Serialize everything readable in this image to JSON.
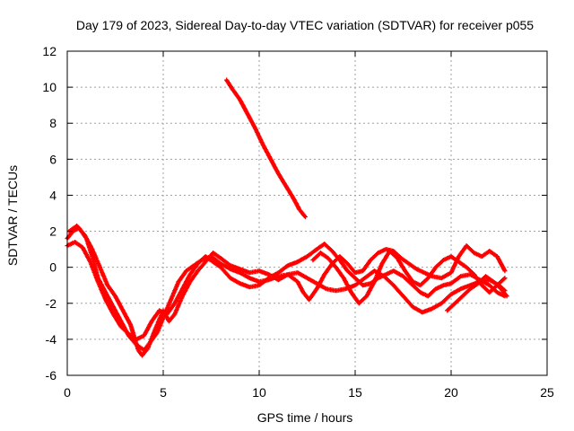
{
  "chart_data": {
    "type": "scatter",
    "title": "Day 179 of 2023, Sidereal Day-to-day VTEC variation (SDTVAR) for receiver p055",
    "xlabel": "GPS time / hours",
    "ylabel": "SDTVAR / TECUs",
    "xlim": [
      0,
      25
    ],
    "ylim": [
      -6,
      12
    ],
    "x_ticks": [
      0,
      5,
      10,
      15,
      20,
      25
    ],
    "y_ticks": [
      -6,
      -4,
      -2,
      0,
      2,
      4,
      6,
      8,
      10,
      12
    ],
    "x_tick_labels": [
      "0",
      "5",
      "10",
      "15",
      "20",
      "25"
    ],
    "y_tick_labels": [
      "-6",
      "-4",
      "-2",
      "0",
      "2",
      "4",
      "6",
      "8",
      "10",
      "12"
    ],
    "grid": true,
    "marker": "+",
    "series": [
      {
        "name": "track-1",
        "color": "#ff0000",
        "points": [
          [
            0.0,
            1.6
          ],
          [
            0.3,
            2.0
          ],
          [
            0.6,
            2.2
          ],
          [
            1.0,
            1.6
          ],
          [
            1.3,
            0.6
          ],
          [
            1.6,
            -0.6
          ],
          [
            2.0,
            -1.4
          ],
          [
            2.4,
            -2.2
          ],
          [
            2.8,
            -3.0
          ],
          [
            3.2,
            -3.8
          ],
          [
            3.6,
            -4.3
          ],
          [
            4.0,
            -4.6
          ],
          [
            4.3,
            -4.2
          ],
          [
            4.7,
            -3.6
          ],
          [
            5.0,
            -2.8
          ],
          [
            5.4,
            -1.8
          ],
          [
            5.8,
            -0.8
          ],
          [
            6.2,
            -0.2
          ],
          [
            6.6,
            0.1
          ],
          [
            7.0,
            0.4
          ],
          [
            7.5,
            0.6
          ],
          [
            8.0,
            0.2
          ],
          [
            8.5,
            -0.1
          ],
          [
            9.0,
            -0.3
          ],
          [
            9.5,
            -0.6
          ],
          [
            10.0,
            -0.8
          ],
          [
            10.5,
            -0.7
          ],
          [
            11.0,
            -0.5
          ],
          [
            11.5,
            -0.4
          ],
          [
            12.0,
            -0.3
          ],
          [
            12.5,
            -0.6
          ],
          [
            13.0,
            -0.9
          ],
          [
            13.5,
            -1.2
          ],
          [
            14.0,
            -1.3
          ],
          [
            14.5,
            -1.2
          ],
          [
            15.0,
            -1.0
          ],
          [
            15.5,
            -0.6
          ],
          [
            16.0,
            -0.2
          ],
          [
            16.5,
            -0.5
          ],
          [
            17.0,
            -1.0
          ],
          [
            17.5,
            -1.6
          ],
          [
            18.0,
            -2.2
          ],
          [
            18.5,
            -2.5
          ],
          [
            19.0,
            -2.3
          ],
          [
            19.5,
            -2.0
          ],
          [
            20.0,
            -1.5
          ],
          [
            20.5,
            -1.2
          ],
          [
            21.0,
            -1.0
          ],
          [
            21.5,
            -0.8
          ],
          [
            22.0,
            -0.7
          ],
          [
            22.5,
            -1.0
          ],
          [
            22.8,
            -1.3
          ]
        ]
      },
      {
        "name": "track-2",
        "color": "#ff0000",
        "points": [
          [
            0.0,
            1.2
          ],
          [
            0.4,
            1.4
          ],
          [
            0.8,
            1.1
          ],
          [
            1.2,
            0.3
          ],
          [
            1.6,
            -0.8
          ],
          [
            2.0,
            -1.8
          ],
          [
            2.4,
            -2.6
          ],
          [
            2.8,
            -3.3
          ],
          [
            3.2,
            -3.7
          ],
          [
            3.6,
            -4.0
          ],
          [
            4.0,
            -3.8
          ],
          [
            4.4,
            -3.0
          ],
          [
            4.8,
            -2.4
          ],
          [
            5.2,
            -2.6
          ],
          [
            5.6,
            -2.0
          ],
          [
            6.0,
            -1.2
          ],
          [
            6.4,
            -0.4
          ],
          [
            6.8,
            0.2
          ],
          [
            7.2,
            0.6
          ],
          [
            7.6,
            0.3
          ],
          [
            8.0,
            0.0
          ],
          [
            8.5,
            -0.6
          ],
          [
            9.0,
            -0.9
          ],
          [
            9.5,
            -1.1
          ],
          [
            10.0,
            -1.0
          ],
          [
            10.5,
            -0.6
          ],
          [
            11.0,
            -0.3
          ],
          [
            11.5,
            0.1
          ],
          [
            12.0,
            0.3
          ],
          [
            12.5,
            0.6
          ],
          [
            13.0,
            1.0
          ],
          [
            13.4,
            1.3
          ],
          [
            13.8,
            0.9
          ],
          [
            14.2,
            0.4
          ],
          [
            14.6,
            -0.2
          ],
          [
            15.0,
            -0.6
          ],
          [
            15.4,
            -1.0
          ],
          [
            15.8,
            -0.9
          ],
          [
            16.2,
            -0.6
          ],
          [
            16.6,
            -0.4
          ],
          [
            17.0,
            -0.2
          ],
          [
            17.5,
            -0.5
          ],
          [
            18.0,
            -1.0
          ],
          [
            18.4,
            -1.4
          ],
          [
            18.8,
            -1.6
          ],
          [
            19.2,
            -1.2
          ],
          [
            19.6,
            -1.0
          ],
          [
            20.0,
            -0.9
          ],
          [
            20.5,
            -0.5
          ],
          [
            21.0,
            -0.4
          ],
          [
            21.5,
            -0.7
          ],
          [
            22.0,
            -1.0
          ],
          [
            22.4,
            -1.4
          ],
          [
            22.8,
            -1.6
          ]
        ]
      },
      {
        "name": "track-3",
        "color": "#ff0000",
        "points": [
          [
            0.1,
            2.0
          ],
          [
            0.5,
            2.3
          ],
          [
            0.9,
            1.8
          ],
          [
            1.3,
            1.0
          ],
          [
            1.7,
            0.0
          ],
          [
            2.1,
            -1.0
          ],
          [
            2.5,
            -1.6
          ],
          [
            2.9,
            -2.4
          ],
          [
            3.3,
            -3.2
          ],
          [
            3.7,
            -4.6
          ],
          [
            3.9,
            -4.9
          ],
          [
            4.2,
            -4.5
          ],
          [
            4.6,
            -3.4
          ],
          [
            5.0,
            -2.4
          ],
          [
            5.3,
            -3.0
          ],
          [
            5.6,
            -2.6
          ],
          [
            6.0,
            -1.6
          ],
          [
            6.4,
            -0.8
          ],
          [
            6.8,
            -0.2
          ],
          [
            7.2,
            0.3
          ],
          [
            7.6,
            0.8
          ],
          [
            8.0,
            0.5
          ],
          [
            8.5,
            0.1
          ],
          [
            9.0,
            -0.1
          ],
          [
            9.5,
            -0.3
          ],
          [
            10.0,
            -0.2
          ],
          [
            10.5,
            -0.4
          ],
          [
            11.0,
            -0.7
          ],
          [
            11.5,
            -0.4
          ],
          [
            12.0,
            -0.8
          ],
          [
            12.3,
            -1.4
          ],
          [
            12.6,
            -1.8
          ],
          [
            13.0,
            -1.2
          ],
          [
            13.4,
            -0.4
          ],
          [
            13.8,
            0.2
          ],
          [
            14.2,
            0.6
          ],
          [
            14.6,
            0.2
          ],
          [
            15.0,
            -0.3
          ],
          [
            15.4,
            -0.2
          ],
          [
            15.8,
            0.4
          ],
          [
            16.2,
            0.8
          ],
          [
            16.6,
            1.0
          ],
          [
            17.0,
            0.9
          ],
          [
            17.4,
            0.5
          ],
          [
            17.8,
            0.2
          ],
          [
            18.2,
            -0.1
          ],
          [
            18.6,
            -0.3
          ],
          [
            19.0,
            -0.5
          ],
          [
            19.5,
            -0.6
          ],
          [
            20.0,
            -0.3
          ],
          [
            20.4,
            0.6
          ],
          [
            20.8,
            1.2
          ],
          [
            21.2,
            0.8
          ],
          [
            21.6,
            0.6
          ],
          [
            22.0,
            0.9
          ],
          [
            22.4,
            0.6
          ],
          [
            22.8,
            -0.2
          ]
        ]
      },
      {
        "name": "track-4",
        "color": "#ff0000",
        "points": [
          [
            8.3,
            10.4
          ],
          [
            8.6,
            9.9
          ],
          [
            9.0,
            9.3
          ],
          [
            9.4,
            8.5
          ],
          [
            9.8,
            7.7
          ],
          [
            10.2,
            6.8
          ],
          [
            10.6,
            6.0
          ],
          [
            11.0,
            5.2
          ],
          [
            11.4,
            4.5
          ],
          [
            11.8,
            3.8
          ],
          [
            12.1,
            3.2
          ],
          [
            12.4,
            2.8
          ]
        ]
      },
      {
        "name": "track-5",
        "color": "#ff0000",
        "points": [
          [
            12.8,
            0.4
          ],
          [
            13.2,
            0.8
          ],
          [
            13.6,
            0.5
          ],
          [
            14.0,
            0.0
          ],
          [
            14.4,
            -0.6
          ],
          [
            14.8,
            -1.4
          ],
          [
            15.2,
            -2.0
          ],
          [
            15.6,
            -1.6
          ],
          [
            16.0,
            -0.8
          ],
          [
            16.4,
            0.2
          ],
          [
            16.8,
            0.9
          ],
          [
            17.2,
            0.5
          ],
          [
            17.6,
            -0.2
          ],
          [
            18.0,
            -0.8
          ],
          [
            18.4,
            -1.0
          ],
          [
            18.8,
            -0.6
          ],
          [
            19.2,
            0.0
          ],
          [
            19.6,
            0.4
          ],
          [
            20.0,
            0.6
          ],
          [
            20.4,
            0.3
          ],
          [
            20.8,
            0.0
          ],
          [
            21.2,
            -0.4
          ],
          [
            21.6,
            -1.0
          ],
          [
            22.0,
            -1.4
          ],
          [
            22.4,
            -1.0
          ],
          [
            22.8,
            -0.6
          ]
        ]
      },
      {
        "name": "track-6",
        "color": "#ff0000",
        "points": [
          [
            19.8,
            -2.4
          ],
          [
            20.2,
            -2.0
          ],
          [
            20.6,
            -1.6
          ],
          [
            21.0,
            -1.2
          ],
          [
            21.4,
            -0.9
          ],
          [
            21.8,
            -0.5
          ],
          [
            22.2,
            -0.8
          ],
          [
            22.6,
            -1.2
          ],
          [
            22.9,
            -1.6
          ]
        ]
      }
    ]
  }
}
